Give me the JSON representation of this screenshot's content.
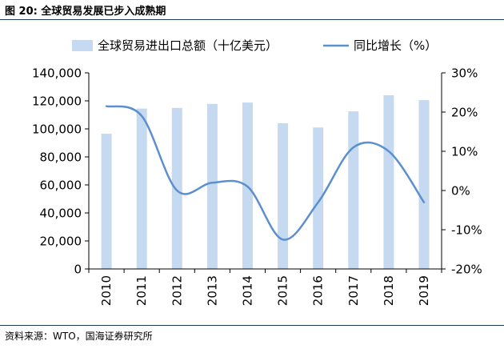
{
  "figure": {
    "title": "图 20:  全球贸易发展已步入成熟期",
    "source": "资料来源：WTO，国海证券研究所"
  },
  "colors": {
    "bar": "#c5daf0",
    "line": "#5b8fd0",
    "axis": "#000000",
    "rule": "#1f3a5f"
  },
  "chart_data": {
    "type": "bar",
    "categories": [
      "2010",
      "2011",
      "2012",
      "2013",
      "2014",
      "2015",
      "2016",
      "2017",
      "2018",
      "2019"
    ],
    "series": [
      {
        "name": "全球贸易进出口总额（十亿美元）",
        "type": "bar",
        "axis": "left",
        "values": [
          96500,
          114500,
          115000,
          117800,
          118800,
          104000,
          101000,
          112500,
          124000,
          120500
        ]
      },
      {
        "name": "同比增长（%）",
        "type": "line",
        "axis": "right",
        "values": [
          21.5,
          19.0,
          0.0,
          2.0,
          1.0,
          -12.5,
          -3.0,
          11.0,
          10.0,
          -3.0
        ]
      }
    ],
    "y_left": {
      "ylim": [
        0,
        140000
      ],
      "ticks": [
        0,
        20000,
        40000,
        60000,
        80000,
        100000,
        120000,
        140000
      ],
      "tick_labels": [
        "0",
        "20,000",
        "40,000",
        "60,000",
        "80,000",
        "100,000",
        "120,000",
        "140,000"
      ]
    },
    "y_right": {
      "ylim": [
        -20,
        30
      ],
      "ticks": [
        -20,
        -10,
        0,
        10,
        20,
        30
      ],
      "tick_labels": [
        "-20%",
        "-10%",
        "0%",
        "10%",
        "20%",
        "30%"
      ]
    },
    "legend_position": "top",
    "grid": false
  }
}
